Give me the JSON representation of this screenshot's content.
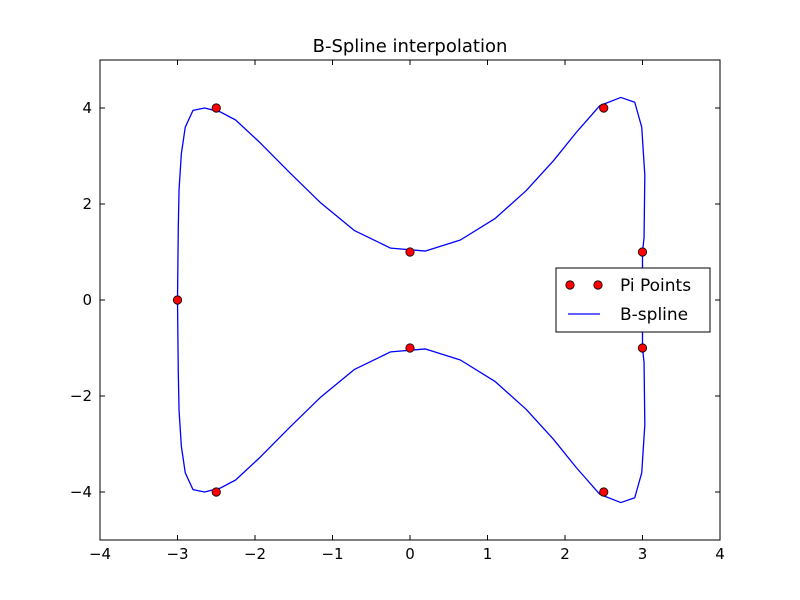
{
  "chart_data": {
    "type": "line",
    "title": "B-Spline interpolation",
    "xlabel": "",
    "ylabel": "",
    "xlim": [
      -4,
      4
    ],
    "ylim": [
      -5,
      5
    ],
    "xticks": [
      -4,
      -3,
      -2,
      -1,
      0,
      1,
      2,
      3,
      4
    ],
    "yticks": [
      -4,
      -2,
      0,
      2,
      4
    ],
    "xtick_labels": [
      "−4",
      "−3",
      "−2",
      "−1",
      "0",
      "1",
      "2",
      "3",
      "4"
    ],
    "ytick_labels": [
      "−4",
      "−2",
      "0",
      "2",
      "4"
    ],
    "grid": false,
    "legend_position": "center-right",
    "series": [
      {
        "name": "Pi Points",
        "style": "markers",
        "color": "#ff0000",
        "x": [
          -2.5,
          0,
          2.5,
          3,
          3,
          2.5,
          0,
          -2.5,
          -3
        ],
        "y": [
          4,
          1,
          4,
          1,
          -1,
          -4,
          -1,
          -4,
          0
        ]
      },
      {
        "name": "B-spline",
        "style": "line",
        "color": "#0000ff",
        "x": [
          -3,
          -2.99,
          -2.98,
          -2.95,
          -2.9,
          -2.8,
          -2.65,
          -2.45,
          -2.25,
          -1.95,
          -1.55,
          -1.15,
          -0.72,
          -0.25,
          0.2,
          0.65,
          1.1,
          1.5,
          1.85,
          2.15,
          2.45,
          2.72,
          2.9,
          2.99,
          3.03,
          3.02,
          3,
          3,
          3.02,
          3.03,
          2.99,
          2.9,
          2.72,
          2.45,
          2.15,
          1.85,
          1.5,
          1.1,
          0.65,
          0.2,
          -0.25,
          -0.72,
          -1.15,
          -1.55,
          -1.95,
          -2.25,
          -2.45,
          -2.65,
          -2.8,
          -2.9,
          -2.95,
          -2.98,
          -2.99,
          -3
        ],
        "y": [
          0,
          1.5,
          2.3,
          3.05,
          3.6,
          3.95,
          4.0,
          3.92,
          3.75,
          3.3,
          2.65,
          2.02,
          1.45,
          1.08,
          1.02,
          1.25,
          1.7,
          2.28,
          2.9,
          3.5,
          4.05,
          4.22,
          4.12,
          3.6,
          2.6,
          1.3,
          1.0,
          -1.0,
          -1.3,
          -2.6,
          -3.6,
          -4.12,
          -4.22,
          -4.05,
          -3.5,
          -2.9,
          -2.28,
          -1.7,
          -1.25,
          -1.02,
          -1.08,
          -1.45,
          -2.02,
          -2.65,
          -3.3,
          -3.75,
          -3.92,
          -4.0,
          -3.95,
          -3.6,
          -3.05,
          -2.3,
          -1.5,
          0
        ]
      }
    ],
    "legend": {
      "entries": [
        "Pi Points",
        "B-spline"
      ]
    }
  }
}
